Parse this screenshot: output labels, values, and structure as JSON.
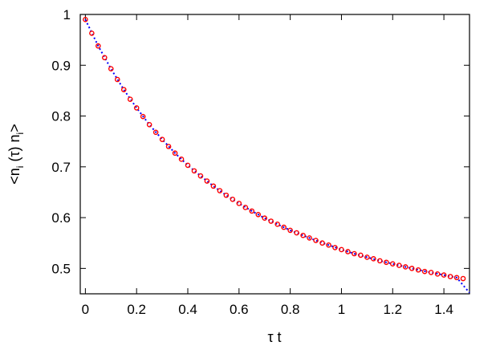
{
  "chart_data": {
    "type": "scatter",
    "xlabel": "τ t",
    "ylabel": {
      "prefix": "<n",
      "sub1": "i",
      "middle": " (τ) n",
      "sub2": "i",
      "suffix": ">"
    },
    "xlim": [
      -0.02,
      1.5
    ],
    "ylim": [
      0.45,
      1.0
    ],
    "x_ticks": [
      "0",
      "0.2",
      "0.4",
      "0.6",
      "0.8",
      "1",
      "1.2",
      "1.4"
    ],
    "y_ticks": [
      "0.5",
      "0.6",
      "0.7",
      "0.8",
      "0.9",
      "1"
    ],
    "grid": false,
    "legend": "none",
    "model": {
      "a": 0.6,
      "b": 0.39,
      "c": 0.422,
      "note_only_for_sampling": false
    },
    "series": [
      {
        "style": "points",
        "color": "#ff0000",
        "x": [
          0.0,
          0.025,
          0.05,
          0.075,
          0.1,
          0.125,
          0.15,
          0.175,
          0.2,
          0.225,
          0.25,
          0.275,
          0.3,
          0.325,
          0.35,
          0.375,
          0.4,
          0.425,
          0.45,
          0.475,
          0.5,
          0.525,
          0.55,
          0.575,
          0.6,
          0.625,
          0.65,
          0.675,
          0.7,
          0.725,
          0.75,
          0.775,
          0.8,
          0.825,
          0.85,
          0.875,
          0.9,
          0.925,
          0.95,
          0.975,
          1.0,
          1.025,
          1.05,
          1.075,
          1.1,
          1.125,
          1.15,
          1.175,
          1.2,
          1.225,
          1.25,
          1.275,
          1.3,
          1.325,
          1.35,
          1.375,
          1.4,
          1.425,
          1.45,
          1.475
        ],
        "y": [
          0.99,
          0.963,
          0.938,
          0.915,
          0.893,
          0.872,
          0.852,
          0.833,
          0.816,
          0.799,
          0.783,
          0.768,
          0.754,
          0.74,
          0.727,
          0.715,
          0.703,
          0.692,
          0.682,
          0.672,
          0.662,
          0.653,
          0.644,
          0.636,
          0.628,
          0.62,
          0.613,
          0.606,
          0.599,
          0.593,
          0.587,
          0.581,
          0.575,
          0.57,
          0.565,
          0.56,
          0.555,
          0.55,
          0.546,
          0.541,
          0.537,
          0.533,
          0.529,
          0.526,
          0.522,
          0.519,
          0.515,
          0.512,
          0.509,
          0.506,
          0.503,
          0.5,
          0.497,
          0.494,
          0.492,
          0.489,
          0.487,
          0.484,
          0.482,
          0.48
        ]
      },
      {
        "style": "dotted-line",
        "color": "#0000ff",
        "x": [
          0.0,
          0.05,
          0.1,
          0.15,
          0.2,
          0.25,
          0.3,
          0.35,
          0.4,
          0.45,
          0.5,
          0.55,
          0.6,
          0.65,
          0.7,
          0.75,
          0.8,
          0.85,
          0.9,
          0.95,
          1.0,
          1.05,
          1.1,
          1.15,
          1.2,
          1.25,
          1.3,
          1.35,
          1.4,
          1.45,
          1.5
        ],
        "y": [
          0.99,
          0.938,
          0.893,
          0.852,
          0.816,
          0.783,
          0.754,
          0.727,
          0.703,
          0.682,
          0.662,
          0.644,
          0.628,
          0.613,
          0.599,
          0.587,
          0.575,
          0.565,
          0.555,
          0.546,
          0.537,
          0.529,
          0.522,
          0.515,
          0.509,
          0.503,
          0.497,
          0.492,
          0.487,
          0.482,
          0.452
        ]
      }
    ]
  }
}
